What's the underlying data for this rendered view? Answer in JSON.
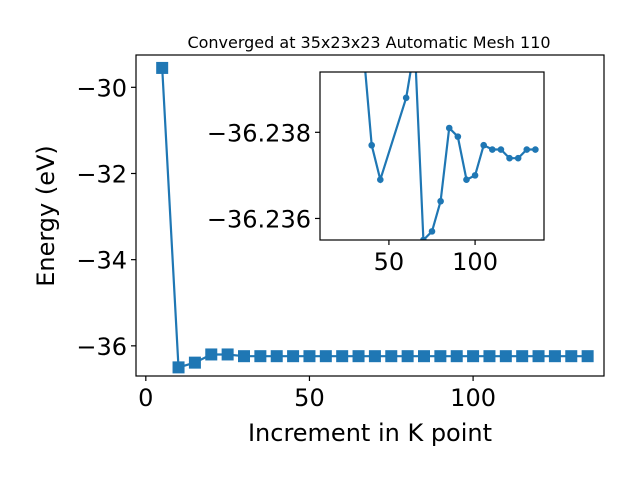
{
  "chart_data": [
    {
      "type": "line",
      "title": "Converged at 35x23x23 Automatic Mesh 110",
      "xlabel": "Increment in K point",
      "ylabel": "Energy (eV)",
      "xlim": [
        -3,
        140
      ],
      "ylim": [
        -36.7,
        -29.25
      ],
      "xticks": [
        0,
        50,
        100
      ],
      "yticks": [
        -30,
        -32,
        -34,
        -36
      ],
      "xtick_labels": [
        "0",
        "50",
        "100"
      ],
      "ytick_labels": [
        "−30",
        "−32",
        "−34",
        "−36"
      ],
      "marker": "square",
      "color": "#1f77b4",
      "grid": false,
      "x": [
        5,
        10,
        15,
        20,
        25,
        30,
        35,
        40,
        45,
        50,
        55,
        60,
        65,
        70,
        75,
        80,
        85,
        90,
        95,
        100,
        105,
        110,
        115,
        120,
        125,
        130,
        135
      ],
      "y": [
        -29.55,
        -36.5,
        -36.39,
        -36.2,
        -36.2,
        -36.24,
        -36.24,
        -36.24,
        -36.24,
        -36.24,
        -36.24,
        -36.24,
        -36.24,
        -36.24,
        -36.24,
        -36.24,
        -36.24,
        -36.24,
        -36.24,
        -36.24,
        -36.24,
        -36.24,
        -36.24,
        -36.24,
        -36.24,
        -36.24,
        -36.24
      ]
    },
    {
      "type": "line",
      "inset": true,
      "xlim": [
        10,
        140
      ],
      "ylim": [
        -36.2355,
        -36.2394
      ],
      "xticks": [
        50,
        100
      ],
      "yticks": [
        -36.238,
        -36.236
      ],
      "xtick_labels": [
        "50",
        "100"
      ],
      "ytick_labels": [
        "−36.238",
        "−36.236"
      ],
      "marker": "circle",
      "color": "#1f77b4",
      "grid": false,
      "x": [
        35,
        40,
        45,
        60,
        65,
        70,
        75,
        80,
        85,
        90,
        95,
        100,
        105,
        110,
        115,
        120,
        125,
        130,
        135
      ],
      "y": [
        -36.24,
        -36.2377,
        -36.2369,
        -36.2388,
        -36.24,
        -36.2355,
        -36.2357,
        -36.2364,
        -36.2381,
        -36.2379,
        -36.2369,
        -36.237,
        -36.2377,
        -36.2376,
        -36.2376,
        -36.2374,
        -36.2374,
        -36.2376,
        -36.2376
      ]
    }
  ]
}
